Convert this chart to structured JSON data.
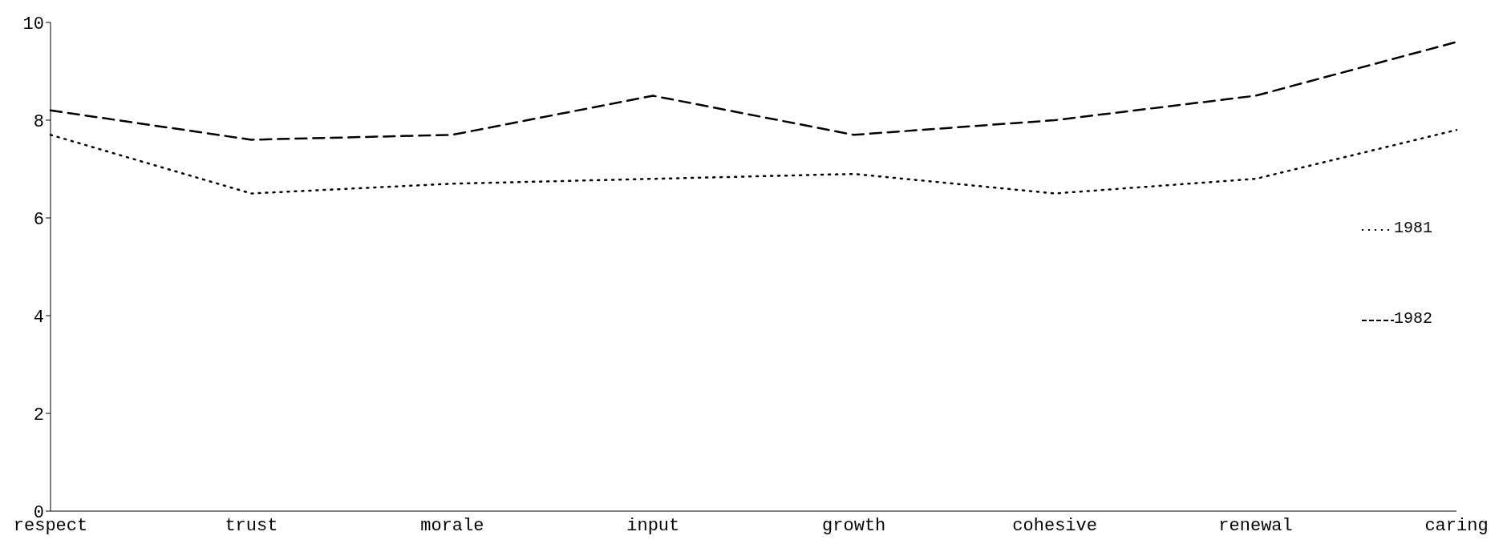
{
  "chart_data": {
    "type": "line",
    "categories": [
      "respect",
      "trust",
      "morale",
      "input",
      "growth",
      "cohesive",
      "renewal",
      "caring"
    ],
    "series": [
      {
        "name": "1981",
        "color": "#000000",
        "line_style": "dotted",
        "values": [
          7.7,
          6.5,
          6.7,
          6.8,
          6.9,
          6.5,
          6.8,
          7.8
        ]
      },
      {
        "name": "1982",
        "color": "#000000",
        "line_style": "dashed",
        "values": [
          8.2,
          7.6,
          7.7,
          8.5,
          7.7,
          8.0,
          8.5,
          9.6
        ]
      }
    ],
    "ylim": [
      0,
      10
    ],
    "yticks": [
      0,
      2,
      4,
      6,
      8,
      10
    ],
    "grid": false,
    "legend": "right",
    "marker": "none"
  }
}
